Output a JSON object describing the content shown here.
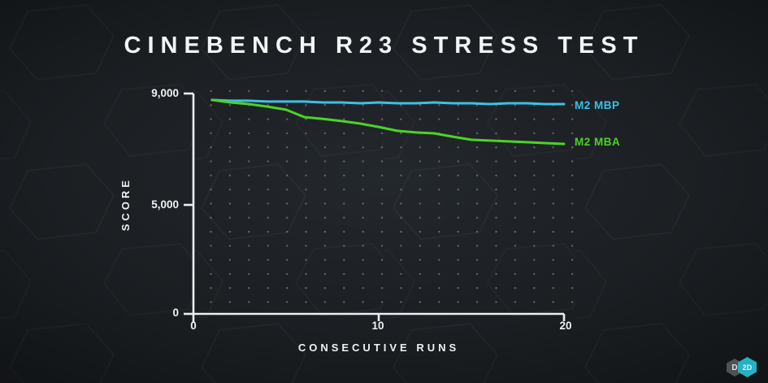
{
  "title": "CINEBENCH R23 STRESS TEST",
  "axis": {
    "ylabel": "SCORE",
    "xlabel": "CONSECUTIVE RUNS",
    "yticks": [
      "9,000",
      "5,000",
      "0"
    ],
    "xticks": [
      "0",
      "10",
      "20"
    ]
  },
  "legend": {
    "mbp": "M2 MBP",
    "mba": "M2 MBA"
  },
  "logo": {
    "left_text": "D",
    "right_text": "2D",
    "left_color": "#54585c",
    "right_color": "#26b1c6"
  },
  "colors": {
    "background": "#1d2125",
    "axis": "#eceef0",
    "text": "#f2f4f6",
    "grid_dots": "#969ca3",
    "mbp_line": "#3cc0e6",
    "mba_line": "#4dd228"
  },
  "chart_data": {
    "type": "line",
    "title": "CINEBENCH R23 STRESS TEST",
    "xlabel": "CONSECUTIVE RUNS",
    "ylabel": "SCORE",
    "xlim": [
      0,
      20
    ],
    "ylim": [
      0,
      9000
    ],
    "x_tick_values": [
      0,
      10,
      20
    ],
    "y_tick_values": [
      9000,
      5000,
      0
    ],
    "grid": "dotted",
    "legend_position": "right of line ends",
    "x": [
      1,
      2,
      3,
      4,
      5,
      6,
      7,
      8,
      9,
      10,
      11,
      12,
      13,
      14,
      15,
      16,
      17,
      18,
      19,
      20
    ],
    "series": [
      {
        "name": "M2 MBP",
        "color": "#3cc0e6",
        "values": [
          8770,
          8740,
          8740,
          8710,
          8710,
          8710,
          8680,
          8680,
          8650,
          8680,
          8650,
          8650,
          8680,
          8650,
          8650,
          8620,
          8650,
          8650,
          8620,
          8620
        ]
      },
      {
        "name": "M2 MBA",
        "color": "#4dd228",
        "values": [
          8770,
          8680,
          8620,
          8530,
          8420,
          8150,
          8090,
          8010,
          7920,
          7800,
          7660,
          7600,
          7570,
          7450,
          7340,
          7310,
          7280,
          7250,
          7220,
          7190
        ]
      }
    ]
  }
}
